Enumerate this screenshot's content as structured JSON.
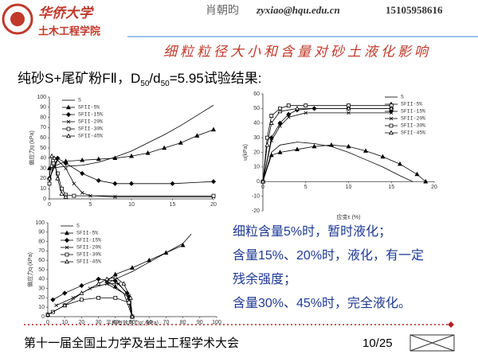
{
  "header": {
    "logo_name": "华侨大学",
    "school": "土木工程学院",
    "author": "肖朝昀",
    "email": "zyxiao@hqu.edu.cn",
    "phone": "15105958616",
    "subtitle": "细粒粒径大小和含量对砂土液化影响"
  },
  "heading": [
    "纯砂S+尾矿粉FⅡ，D",
    "50",
    "/d",
    "50",
    "=5.95试验结果:"
  ],
  "notes": [
    "细粒含量5%时，暂时液化；",
    "含量15%、20%时，液化，有一定",
    "残余强度；",
    "含量30%、45%时，完全液化。"
  ],
  "footer": {
    "conference": "第十一届全国土力学及岩土工程学术大会",
    "page": "10/25"
  },
  "chart_data": [
    {
      "type": "line",
      "ylabel": "偏应力q (kPa)",
      "xlim": [
        0,
        20
      ],
      "xticks": [
        0,
        5,
        10,
        15,
        20
      ],
      "ylim": [
        0,
        100
      ],
      "yticks": [
        0,
        10,
        20,
        30,
        40,
        50,
        60,
        70,
        80,
        90,
        100
      ],
      "legend": "upper left",
      "series": [
        {
          "name": "S",
          "color": "#000000",
          "marker": "none",
          "x": [
            0,
            2,
            4,
            6,
            8,
            10,
            12,
            14,
            16,
            18,
            20
          ],
          "values": [
            30,
            32,
            33,
            36,
            41,
            47,
            55,
            63,
            72,
            82,
            92
          ]
        },
        {
          "name": "SFII-5%",
          "color": "#000000",
          "marker": "triangle",
          "x": [
            0,
            2,
            4,
            6,
            8,
            10,
            12,
            14,
            16,
            18,
            20
          ],
          "values": [
            30,
            37,
            38,
            39,
            40,
            42,
            45,
            50,
            55,
            62,
            68
          ]
        },
        {
          "name": "SFII-15%",
          "color": "#000000",
          "marker": "diamond",
          "x": [
            0,
            1,
            2,
            4,
            6,
            8,
            10,
            15,
            20
          ],
          "values": [
            20,
            40,
            35,
            25,
            18,
            15,
            15,
            15,
            17
          ]
        },
        {
          "name": "SFII-20%",
          "color": "#000000",
          "marker": "x",
          "x": [
            0,
            1,
            2,
            3,
            4,
            5,
            8,
            20
          ],
          "values": [
            20,
            38,
            30,
            15,
            6,
            3,
            2,
            2
          ]
        },
        {
          "name": "SFII-30%",
          "color": "#000000",
          "marker": "square",
          "x": [
            0,
            0.5,
            1,
            1.5,
            2,
            3,
            20
          ],
          "values": [
            15,
            35,
            25,
            10,
            4,
            3,
            3
          ]
        },
        {
          "name": "SFII-45%",
          "color": "#000000",
          "marker": "open-triangle",
          "x": [
            0,
            0.3,
            0.6,
            1,
            1.5,
            2
          ],
          "values": [
            20,
            42,
            40,
            20,
            5,
            2
          ]
        }
      ]
    },
    {
      "type": "line",
      "ylabel": "u(kPa)",
      "xlabel": "应变ε (%)",
      "xlim": [
        0,
        20
      ],
      "xticks": [
        0,
        5,
        10,
        15,
        20
      ],
      "ylim": [
        -20,
        60
      ],
      "yticks": [
        -20,
        -10,
        0,
        10,
        20,
        30,
        40,
        50,
        60
      ],
      "legend": "upper right",
      "series": [
        {
          "name": "S",
          "color": "#000000",
          "marker": "none",
          "x": [
            0,
            1,
            2,
            4,
            6,
            8,
            10,
            12,
            14,
            16,
            17.5
          ],
          "values": [
            0,
            20,
            25,
            27,
            26,
            24,
            20,
            15,
            10,
            4,
            0
          ]
        },
        {
          "name": "SFII-5%",
          "color": "#000000",
          "marker": "triangle",
          "x": [
            0,
            1,
            2,
            4,
            6,
            8,
            10,
            12,
            14,
            16,
            18,
            19
          ],
          "values": [
            0,
            18,
            20,
            22,
            24,
            25,
            24,
            21,
            17,
            12,
            5,
            0
          ]
        },
        {
          "name": "SFII-15%",
          "color": "#000000",
          "marker": "diamond",
          "x": [
            0,
            1,
            2,
            3,
            4,
            6,
            10,
            15
          ],
          "values": [
            0,
            30,
            40,
            46,
            49,
            50,
            50,
            50
          ]
        },
        {
          "name": "SFII-20%",
          "color": "#000000",
          "marker": "x",
          "x": [
            0,
            1,
            2,
            3,
            5,
            10,
            15
          ],
          "values": [
            0,
            28,
            38,
            44,
            47,
            47,
            47
          ]
        },
        {
          "name": "SFII-30%",
          "color": "#000000",
          "marker": "square",
          "x": [
            0,
            0.5,
            1,
            2,
            3,
            5,
            10,
            15
          ],
          "values": [
            0,
            30,
            45,
            50,
            52,
            52,
            52,
            52
          ]
        },
        {
          "name": "SFII-45%",
          "color": "#000000",
          "marker": "open-triangle",
          "x": [
            0,
            0.5,
            1,
            2,
            4,
            10,
            15
          ],
          "values": [
            0,
            25,
            40,
            48,
            50,
            50,
            50
          ]
        }
      ]
    },
    {
      "type": "line",
      "ylabel": "偏应力q (kPa)",
      "xlabel": "平均有效应力q' (kPa)",
      "xlim": [
        0,
        100
      ],
      "xticks": [
        0,
        10,
        20,
        30,
        40,
        50,
        60,
        70,
        80,
        90,
        100
      ],
      "ylim": [
        0,
        100
      ],
      "yticks": [
        0,
        10,
        20,
        30,
        40,
        50,
        60,
        70,
        80,
        90,
        100
      ],
      "legend": "upper left",
      "series": [
        {
          "name": "S",
          "color": "#000000",
          "marker": "none",
          "x": [
            50,
            45,
            35,
            40,
            50,
            60,
            70,
            80,
            85
          ],
          "values": [
            0,
            25,
            35,
            40,
            48,
            58,
            68,
            78,
            88
          ]
        },
        {
          "name": "SFII-5%",
          "color": "#000000",
          "marker": "triangle",
          "x": [
            50,
            48,
            40,
            35,
            40,
            50,
            60,
            70,
            80
          ],
          "values": [
            0,
            20,
            32,
            38,
            45,
            52,
            60,
            68,
            76
          ]
        },
        {
          "name": "SFII-15%",
          "color": "#000000",
          "marker": "diamond",
          "x": [
            50,
            47,
            40,
            30,
            20,
            10,
            3
          ],
          "values": [
            0,
            25,
            38,
            40,
            33,
            25,
            18
          ]
        },
        {
          "name": "SFII-20%",
          "color": "#000000",
          "marker": "x",
          "x": [
            50,
            48,
            42,
            35,
            25,
            15,
            5
          ],
          "values": [
            0,
            22,
            35,
            35,
            30,
            20,
            12
          ]
        },
        {
          "name": "SFII-30%",
          "color": "#000000",
          "marker": "square",
          "x": [
            50,
            48,
            40,
            30,
            20,
            10,
            3,
            0
          ],
          "values": [
            0,
            15,
            20,
            20,
            18,
            12,
            5,
            2
          ]
        },
        {
          "name": "SFII-45%",
          "color": "#000000",
          "marker": "open-triangle",
          "x": [
            50,
            49,
            45,
            40,
            35,
            30,
            20,
            10,
            0
          ],
          "values": [
            0,
            20,
            35,
            42,
            40,
            35,
            25,
            12,
            2
          ]
        }
      ]
    }
  ]
}
